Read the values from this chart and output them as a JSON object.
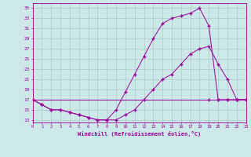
{
  "bg_color": "#cce8e8",
  "line_color": "#990099",
  "grid_color": "#b0c8c8",
  "xlabel": "Windchill (Refroidissement éolien,°C)",
  "ylabel_ticks": [
    13,
    15,
    17,
    19,
    21,
    23,
    25,
    27,
    29,
    31,
    33,
    35
  ],
  "xticks": [
    0,
    1,
    2,
    3,
    4,
    5,
    6,
    7,
    8,
    9,
    10,
    11,
    12,
    13,
    14,
    15,
    16,
    17,
    18,
    19,
    20,
    21,
    22,
    23
  ],
  "xlim": [
    0,
    23
  ],
  "ylim": [
    12.5,
    36
  ],
  "line1_x": [
    0,
    1,
    2,
    3,
    4,
    5,
    6,
    7,
    8,
    9,
    10,
    11,
    12,
    13,
    14,
    15,
    16,
    17,
    18,
    19,
    20,
    21,
    22,
    23
  ],
  "line1_y": [
    17,
    16,
    15,
    15,
    14.5,
    14,
    13.5,
    13,
    13,
    13,
    14,
    15,
    17,
    19,
    21,
    22,
    24,
    26,
    27,
    27.5,
    24,
    21,
    17,
    17
  ],
  "line2_x": [
    0,
    1,
    2,
    3,
    4,
    5,
    6,
    7,
    8,
    9,
    10,
    11,
    12,
    13,
    14,
    15,
    16,
    17,
    18,
    19,
    20,
    21,
    22,
    23
  ],
  "line2_y": [
    17,
    16,
    15,
    15,
    14.5,
    14,
    13.5,
    13,
    13,
    15,
    18.5,
    22,
    25.5,
    29,
    32,
    33,
    33.5,
    34,
    35,
    31.5,
    17,
    17,
    17,
    17
  ],
  "line3_x": [
    0,
    19,
    20,
    21,
    22,
    23
  ],
  "line3_y": [
    17,
    17,
    17,
    17,
    17,
    17
  ],
  "marker": "+"
}
